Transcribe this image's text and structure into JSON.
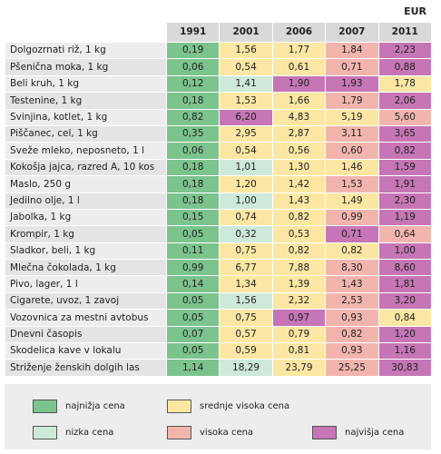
{
  "unit": "EUR",
  "chart_data": {
    "type": "table",
    "columns": [
      "1991",
      "2001",
      "2006",
      "2007",
      "2011"
    ],
    "rows": [
      {
        "label": "Dolgozrnati riž, 1 kg",
        "values": [
          "0,19",
          "1,56",
          "1,77",
          "1,84",
          "2,23"
        ],
        "levels": [
          1,
          3,
          3,
          4,
          5
        ]
      },
      {
        "label": "Pšenična moka, 1 kg",
        "values": [
          "0,06",
          "0,54",
          "0,61",
          "0,71",
          "0,88"
        ],
        "levels": [
          1,
          3,
          3,
          4,
          5
        ]
      },
      {
        "label": "Beli kruh, 1 kg",
        "values": [
          "0,12",
          "1,41",
          "1,90",
          "1,93",
          "1,78"
        ],
        "levels": [
          1,
          2,
          5,
          5,
          3
        ]
      },
      {
        "label": "Testenine, 1 kg",
        "values": [
          "0,18",
          "1,53",
          "1,66",
          "1,79",
          "2,06"
        ],
        "levels": [
          1,
          3,
          3,
          4,
          5
        ]
      },
      {
        "label": "Svinjina, kotlet, 1 kg",
        "values": [
          "0,82",
          "6,20",
          "4,83",
          "5,19",
          "5,60"
        ],
        "levels": [
          1,
          5,
          3,
          3,
          4
        ]
      },
      {
        "label": "Piščanec, cel, 1 kg",
        "values": [
          "0,35",
          "2,95",
          "2,87",
          "3,11",
          "3,65"
        ],
        "levels": [
          1,
          3,
          3,
          4,
          5
        ]
      },
      {
        "label": "Sveže mleko, neposneto, 1 l",
        "values": [
          "0,06",
          "0,54",
          "0,56",
          "0,60",
          "0,82"
        ],
        "levels": [
          1,
          3,
          3,
          4,
          5
        ]
      },
      {
        "label": "Kokošja jajca, razred A, 10 kos",
        "values": [
          "0,18",
          "1,01",
          "1,30",
          "1,46",
          "1,59"
        ],
        "levels": [
          1,
          2,
          3,
          3,
          5
        ]
      },
      {
        "label": "Maslo, 250 g",
        "values": [
          "0,18",
          "1,20",
          "1,42",
          "1,53",
          "1,91"
        ],
        "levels": [
          1,
          3,
          3,
          4,
          5
        ]
      },
      {
        "label": "Jedilno olje, 1 l",
        "values": [
          "0,18",
          "1,00",
          "1,43",
          "1,49",
          "2,30"
        ],
        "levels": [
          1,
          2,
          3,
          3,
          5
        ]
      },
      {
        "label": "Jabolka, 1 kg",
        "values": [
          "0,15",
          "0,74",
          "0,82",
          "0,99",
          "1,19"
        ],
        "levels": [
          1,
          3,
          3,
          4,
          5
        ]
      },
      {
        "label": "Krompir, 1 kg",
        "values": [
          "0,05",
          "0,32",
          "0,53",
          "0,71",
          "0,64"
        ],
        "levels": [
          1,
          2,
          3,
          5,
          4
        ]
      },
      {
        "label": "Sladkor, beli, 1 kg",
        "values": [
          "0,11",
          "0,75",
          "0,82",
          "0,82",
          "1,00"
        ],
        "levels": [
          1,
          3,
          3,
          3,
          5
        ]
      },
      {
        "label": "Mlečna čokolada, 1 kg",
        "values": [
          "0,99",
          "6,77",
          "7,88",
          "8,30",
          "8,60"
        ],
        "levels": [
          1,
          3,
          3,
          4,
          5
        ]
      },
      {
        "label": "Pivo, lager, 1 l",
        "values": [
          "0,14",
          "1,34",
          "1,39",
          "1,43",
          "1,81"
        ],
        "levels": [
          1,
          3,
          3,
          4,
          5
        ]
      },
      {
        "label": "Cigarete, uvoz, 1 zavoj",
        "values": [
          "0,05",
          "1,56",
          "2,32",
          "2,53",
          "3,20"
        ],
        "levels": [
          1,
          2,
          3,
          4,
          5
        ]
      },
      {
        "label": "Vozovnica za mestni avtobus",
        "values": [
          "0,05",
          "0,75",
          "0,97",
          "0,93",
          "0,84"
        ],
        "levels": [
          1,
          3,
          5,
          4,
          3
        ]
      },
      {
        "label": "Dnevni časopis",
        "values": [
          "0,07",
          "0,57",
          "0,79",
          "0,82",
          "1,20"
        ],
        "levels": [
          1,
          3,
          3,
          4,
          5
        ]
      },
      {
        "label": "Skodelica kave v lokalu",
        "values": [
          "0,05",
          "0,59",
          "0,81",
          "0,93",
          "1,16"
        ],
        "levels": [
          1,
          3,
          3,
          4,
          5
        ]
      },
      {
        "label": "Striženje ženskih dolgih las",
        "values": [
          "1,14",
          "18,29",
          "23,79",
          "25,25",
          "30,83"
        ],
        "levels": [
          1,
          2,
          3,
          4,
          5
        ]
      }
    ],
    "legend": [
      {
        "level": 1,
        "label": "najnižja cena",
        "color": "#7cc38e"
      },
      {
        "level": 2,
        "label": "nizka cena",
        "color": "#cde9da"
      },
      {
        "level": 3,
        "label": "srednje visoka cena",
        "color": "#fbe7a3"
      },
      {
        "level": 4,
        "label": "visoka cena",
        "color": "#f2b5ae"
      },
      {
        "level": 5,
        "label": "najvišja cena",
        "color": "#c676b6"
      }
    ]
  }
}
